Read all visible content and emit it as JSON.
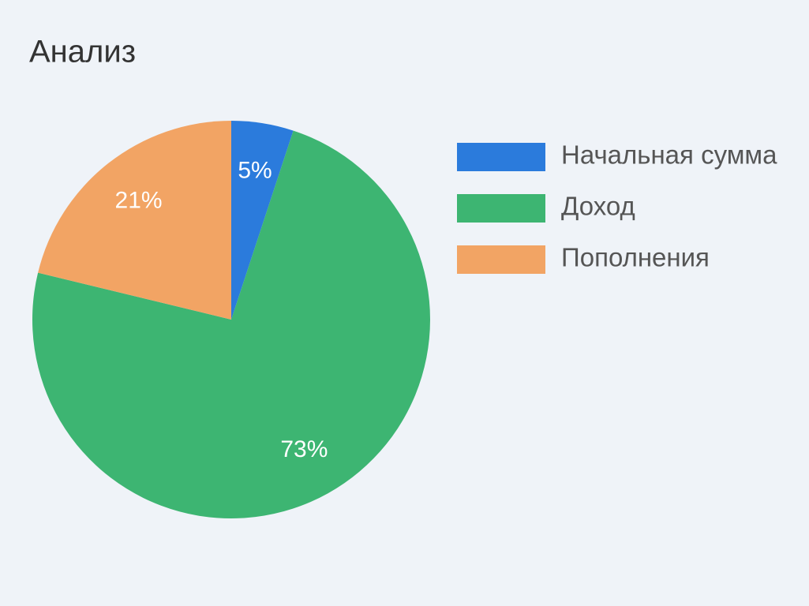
{
  "chart_data": {
    "type": "pie",
    "title": "Анализ",
    "categories": [
      "Начальная сумма",
      "Доход",
      "Пополнения"
    ],
    "values": [
      5,
      73,
      21
    ],
    "value_labels": [
      "5%",
      "73%",
      "21%"
    ],
    "colors": [
      "#2b7bdc",
      "#3db572",
      "#f2a464"
    ],
    "legend": "right"
  }
}
